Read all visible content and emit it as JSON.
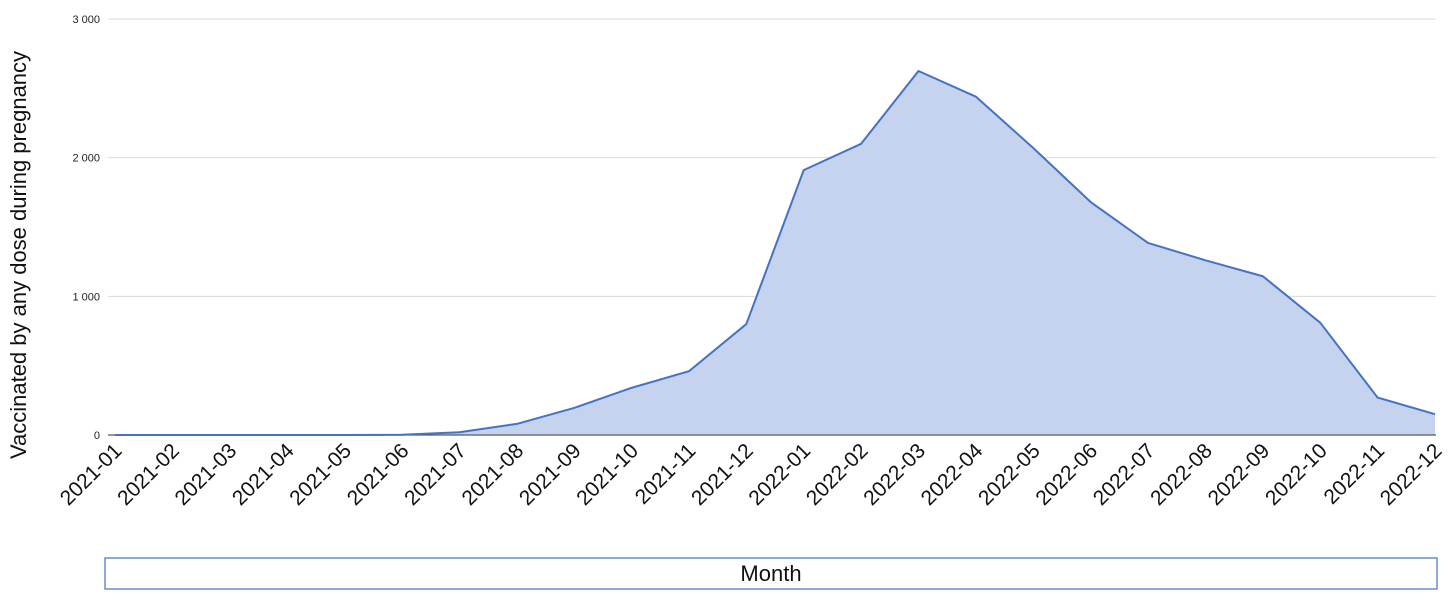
{
  "chart_data": {
    "type": "area",
    "title": "",
    "xlabel": "Month",
    "ylabel": "Vaccinated by any dose during pregnancy",
    "categories": [
      "2021-01",
      "2021-02",
      "2021-03",
      "2021-04",
      "2021-05",
      "2021-06",
      "2021-07",
      "2021-08",
      "2021-09",
      "2021-10",
      "2021-11",
      "2021-12",
      "2022-01",
      "2022-02",
      "2022-03",
      "2022-04",
      "2022-05",
      "2022-06",
      "2022-07",
      "2022-08",
      "2022-09",
      "2022-10",
      "2022-11",
      "2022-12"
    ],
    "series": [
      {
        "values": [
          0,
          0,
          0,
          0,
          0,
          2,
          20,
          80,
          195,
          340,
          460,
          800,
          1910,
          2100,
          2625,
          2440,
          2070,
          1680,
          1385,
          1260,
          1145,
          810,
          270,
          150
        ]
      }
    ],
    "ylim": [
      0,
      3000
    ],
    "yticks": [
      0,
      1000,
      2000,
      3000
    ],
    "ytick_labels": [
      "0",
      "1 000",
      "2 000",
      "3 000"
    ],
    "grid": true,
    "legend": "none",
    "colors": {
      "line": "#4472C4",
      "fill": "#C5D3EE",
      "grid": "#D9D9D9",
      "baseline": "#595959",
      "xlabel_box_border": "#4472C4"
    }
  }
}
